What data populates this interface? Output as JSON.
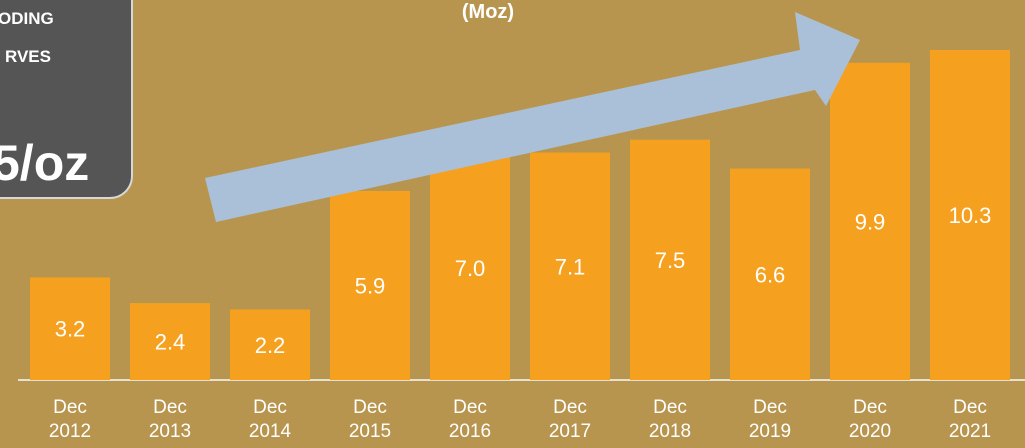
{
  "chart_data": {
    "type": "bar",
    "title": "(Moz)",
    "annotations": [
      "ODING",
      "RVES",
      "5/oz"
    ],
    "categories": [
      "Dec 2012",
      "Dec 2013",
      "Dec 2014",
      "Dec 2015",
      "Dec 2016",
      "Dec 2017",
      "Dec 2018",
      "Dec 2019",
      "Dec 2020",
      "Dec 2021"
    ],
    "values": [
      3.2,
      2.4,
      2.2,
      5.9,
      7.0,
      7.1,
      7.5,
      6.6,
      9.9,
      10.3
    ],
    "value_labels": [
      "3.2",
      "2.4",
      "2.2",
      "5.9",
      "7.0",
      "7.1",
      "7.5",
      "6.6",
      "9.9",
      "10.3"
    ],
    "color": "#f5a11f"
  }
}
